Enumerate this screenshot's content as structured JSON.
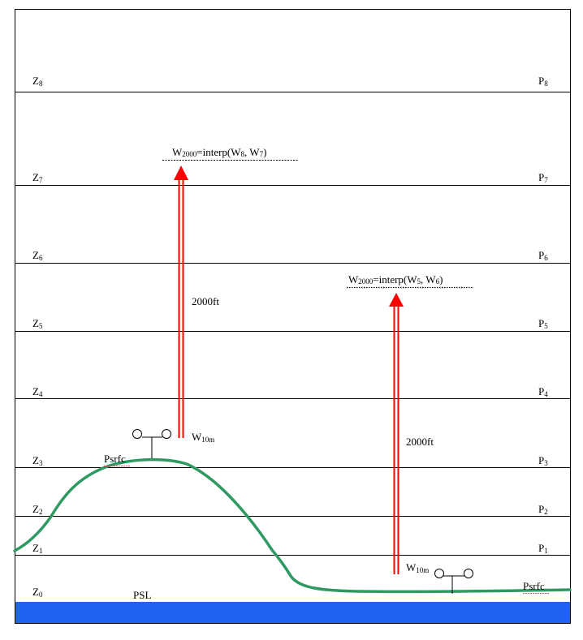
{
  "levels": [
    {
      "z": "Z",
      "z_sub": "8",
      "p": "P",
      "p_sub": "8"
    },
    {
      "z": "Z",
      "z_sub": "7",
      "p": "P",
      "p_sub": "7"
    },
    {
      "z": "Z",
      "z_sub": "6",
      "p": "P",
      "p_sub": "6"
    },
    {
      "z": "Z",
      "z_sub": "5",
      "p": "P",
      "p_sub": "5"
    },
    {
      "z": "Z",
      "z_sub": "4",
      "p": "P",
      "p_sub": "4"
    },
    {
      "z": "Z",
      "z_sub": "3",
      "p": "P",
      "p_sub": "3"
    },
    {
      "z": "Z",
      "z_sub": "2",
      "p": "P",
      "p_sub": "2"
    },
    {
      "z": "Z",
      "z_sub": "1",
      "p": "P",
      "p_sub": "1"
    },
    {
      "z": "Z",
      "z_sub": "0"
    }
  ],
  "psl_label": "PSL",
  "left_station": {
    "psrfc_label": "Psrfc",
    "w10m_main": "W",
    "w10m_sub": "10m",
    "arrow_label": "2000ft",
    "interp_w": "W",
    "interp_sub": "2000",
    "interp_rest": "=interp(W",
    "interp_a_sub": "8",
    "interp_mid": ", W",
    "interp_b_sub": "7",
    "interp_end": ")"
  },
  "right_station": {
    "psrfc_label": "Psrfc",
    "w10m_main": "W",
    "w10m_sub": "10m",
    "arrow_label": "2000ft",
    "interp_w": "W",
    "interp_sub": "2000",
    "interp_rest": "=interp(W",
    "interp_a_sub": "5",
    "interp_mid": ", W",
    "interp_b_sub": "6",
    "interp_end": ")"
  },
  "colors": {
    "terrain": "#2e9a62",
    "sea": "#1e64f0",
    "arrow": "#ff0000",
    "grid": "#000000"
  }
}
